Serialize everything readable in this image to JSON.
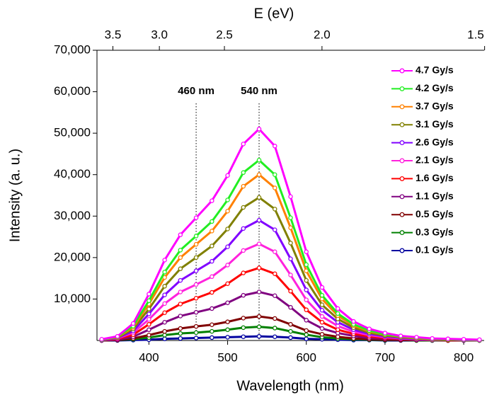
{
  "chart_data": {
    "type": "line",
    "xlabel": "Wavelength (nm)",
    "ylabel": "Intensity (a. u.)",
    "x2label": "E (eV)",
    "x": [
      340,
      360,
      380,
      400,
      420,
      440,
      460,
      480,
      500,
      520,
      540,
      560,
      580,
      600,
      620,
      640,
      660,
      680,
      700,
      720,
      740,
      760,
      780,
      800,
      820
    ],
    "xlim": [
      334,
      826
    ],
    "xticks": [
      400,
      500,
      600,
      700,
      800
    ],
    "ylim": [
      0,
      70000
    ],
    "yticks": [
      {
        "value": 10000,
        "label": "10,000"
      },
      {
        "value": 20000,
        "label": "20,000"
      },
      {
        "value": 30000,
        "label": "30,000"
      },
      {
        "value": 40000,
        "label": "40,000"
      },
      {
        "value": 50000,
        "label": "50,000"
      },
      {
        "value": 60000,
        "label": "60,000"
      },
      {
        "value": 70000,
        "label": "70,000"
      }
    ],
    "x2ticks": [
      3.5,
      {
        "value": 3.0,
        "label": "3.0"
      },
      2.5,
      {
        "value": 2.0,
        "label": "2.0"
      },
      1.5
    ],
    "annotations": [
      {
        "text": "460 nm",
        "x": 460
      },
      {
        "text": "540 nm",
        "x": 540
      }
    ],
    "series": [
      {
        "name": "4.7 Gy/s",
        "color": "#ff00ff",
        "values": [
          300,
          1000,
          4100,
          11200,
          19400,
          25500,
          29600,
          33700,
          39800,
          47400,
          51000,
          46900,
          34700,
          21400,
          12800,
          7700,
          4600,
          2800,
          1800,
          1100,
          800,
          500,
          400,
          300,
          200
        ]
      },
      {
        "name": "4.2 Gy/s",
        "color": "#22ee22",
        "values": [
          200,
          900,
          3500,
          9600,
          16500,
          21800,
          25200,
          28700,
          33900,
          40500,
          43500,
          40000,
          29600,
          18300,
          10900,
          6500,
          3900,
          2400,
          1500,
          1000,
          700,
          400,
          300,
          200,
          100
        ]
      },
      {
        "name": "3.7 Gy/s",
        "color": "#ff8000",
        "values": [
          200,
          800,
          3200,
          8800,
          15200,
          20000,
          23200,
          26400,
          31200,
          37200,
          40000,
          36800,
          27200,
          16800,
          10000,
          6000,
          3600,
          2200,
          1400,
          900,
          600,
          400,
          300,
          200,
          100
        ]
      },
      {
        "name": "3.1 Gy/s",
        "color": "#808000",
        "values": [
          200,
          700,
          2800,
          7600,
          13100,
          17300,
          20000,
          22800,
          26900,
          32100,
          34500,
          31700,
          23500,
          14500,
          8600,
          5200,
          3100,
          1900,
          1200,
          800,
          500,
          300,
          200,
          200,
          100
        ]
      },
      {
        "name": "2.6 Gy/s",
        "color": "#8000ff",
        "values": [
          100,
          600,
          2300,
          6400,
          11000,
          14500,
          16800,
          19100,
          22600,
          27000,
          29000,
          26700,
          19700,
          12200,
          7300,
          4400,
          2600,
          1600,
          1000,
          600,
          400,
          300,
          200,
          100,
          100
        ]
      },
      {
        "name": "2.1 Gy/s",
        "color": "#ff22dd",
        "values": [
          100,
          500,
          1900,
          5100,
          8900,
          11700,
          13500,
          15400,
          18200,
          21700,
          23300,
          21400,
          15800,
          9800,
          5800,
          3500,
          2100,
          1300,
          800,
          500,
          300,
          200,
          200,
          100,
          100
        ]
      },
      {
        "name": "1.6 Gy/s",
        "color": "#ff0000",
        "values": [
          100,
          400,
          1400,
          3900,
          6700,
          8800,
          10200,
          11600,
          13700,
          16300,
          17500,
          16100,
          11900,
          7400,
          4400,
          2600,
          1600,
          1000,
          600,
          400,
          300,
          200,
          100,
          100,
          100
        ]
      },
      {
        "name": "1.1 Gy/s",
        "color": "#800080",
        "values": [
          100,
          200,
          900,
          2600,
          4400,
          5900,
          6800,
          7700,
          9100,
          10900,
          11700,
          10800,
          8000,
          4900,
          2900,
          1800,
          1100,
          600,
          400,
          300,
          200,
          100,
          100,
          100,
          0
        ]
      },
      {
        "name": "0.5 Gy/s",
        "color": "#800000",
        "values": [
          0,
          100,
          500,
          1300,
          2200,
          2900,
          3400,
          3800,
          4500,
          5400,
          5800,
          5300,
          3900,
          2400,
          1500,
          900,
          500,
          300,
          200,
          100,
          100,
          100,
          0,
          0,
          0
        ]
      },
      {
        "name": "0.3 Gy/s",
        "color": "#008000",
        "values": [
          0,
          100,
          300,
          700,
          1300,
          1700,
          1900,
          2200,
          2600,
          3100,
          3300,
          3000,
          2200,
          1400,
          800,
          500,
          300,
          200,
          100,
          100,
          0,
          0,
          0,
          0,
          0
        ]
      },
      {
        "name": "0.1 Gy/s",
        "color": "#0000a0",
        "values": [
          0,
          0,
          100,
          200,
          400,
          500,
          600,
          700,
          800,
          900,
          1000,
          900,
          700,
          400,
          300,
          200,
          100,
          100,
          0,
          0,
          0,
          0,
          0,
          0,
          0
        ]
      }
    ]
  }
}
